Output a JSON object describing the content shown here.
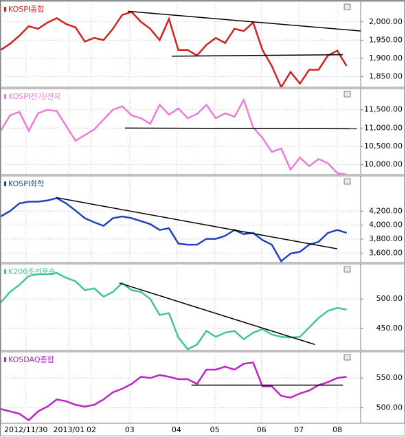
{
  "chart_data": [
    {
      "type": "line",
      "title": "KOSPI종합",
      "color": "#d42020",
      "values": [
        1923,
        1940,
        1962,
        1988,
        1981,
        1998,
        2010,
        1994,
        1985,
        1946,
        1956,
        1950,
        1981,
        2019,
        2027,
        2000,
        1981,
        1950,
        2008,
        1923,
        1923,
        1908,
        1937,
        1956,
        1942,
        1981,
        1975,
        1998,
        1923,
        1879,
        1821,
        1863,
        1831,
        1869,
        1869,
        1908,
        1921,
        1879
      ],
      "ylim": [
        1821,
        2056
      ],
      "yticks": [
        {
          "value": 2000,
          "label": "2,000.00"
        },
        {
          "value": 1950,
          "label": "1,950.00"
        },
        {
          "value": 1900,
          "label": "1,900.00"
        },
        {
          "value": 1850,
          "label": "1,850.00"
        }
      ],
      "trendlines": [
        {
          "x": [
            13.6,
            38.5
          ],
          "y": [
            2029,
            1975
          ]
        },
        {
          "x": [
            18.3,
            36.6
          ],
          "y": [
            1906,
            1910
          ]
        }
      ]
    },
    {
      "type": "line",
      "title": "KOSPI전기/전자",
      "color": "#f07ad8",
      "values": [
        10923,
        11346,
        11442,
        10923,
        11404,
        11500,
        11462,
        11058,
        10654,
        10808,
        10962,
        11231,
        11500,
        11596,
        11346,
        11269,
        11115,
        11635,
        11365,
        11538,
        11269,
        11385,
        11635,
        11269,
        11404,
        11308,
        11769,
        11019,
        10731,
        10346,
        10442,
        9865,
        10192,
        9962,
        10154,
        10038,
        9769,
        9731
      ],
      "ylim": [
        9731,
        12077
      ],
      "yticks": [
        {
          "value": 11500,
          "label": "11,500.00"
        },
        {
          "value": 11000,
          "label": "11,000.00"
        },
        {
          "value": 10500,
          "label": "10,500.00"
        },
        {
          "value": 10000,
          "label": "10,000.00"
        }
      ],
      "trendlines": [
        {
          "x": [
            13.3,
            38.1
          ],
          "y": [
            11000,
            10981
          ]
        }
      ]
    },
    {
      "type": "line",
      "title": "KOSPI화학",
      "color": "#2040c8",
      "values": [
        4124,
        4200,
        4310,
        4335,
        4335,
        4352,
        4386,
        4310,
        4208,
        4099,
        4040,
        3989,
        4099,
        4124,
        4099,
        4057,
        4014,
        3930,
        3955,
        3736,
        3719,
        3719,
        3803,
        3803,
        3846,
        3930,
        3871,
        3888,
        3786,
        3719,
        3483,
        3592,
        3618,
        3719,
        3761,
        3888,
        3930,
        3888
      ],
      "ylim": [
        3465,
        4704
      ],
      "yticks": [
        {
          "value": 4200,
          "label": "4,200.00"
        },
        {
          "value": 4000,
          "label": "4,000.00"
        },
        {
          "value": 3800,
          "label": "3,800.00"
        },
        {
          "value": 3600,
          "label": "3,600.00"
        }
      ],
      "trendlines": [
        {
          "x": [
            5.9,
            36
          ],
          "y": [
            4394,
            3660
          ]
        }
      ]
    },
    {
      "type": "line",
      "title": "K200조선운송",
      "color": "#40c890",
      "values": [
        494,
        512,
        524,
        539,
        542,
        542,
        544,
        536,
        530,
        515,
        518,
        504,
        512,
        527,
        515,
        512,
        500,
        473,
        476,
        435,
        415,
        423,
        446,
        436,
        443,
        446,
        432,
        443,
        449,
        440,
        436,
        435,
        436,
        452,
        468,
        480,
        485,
        482
      ],
      "ylim": [
        413,
        559.5
      ],
      "yticks": [
        {
          "value": 500,
          "label": "500.00"
        },
        {
          "value": 450,
          "label": "450.00"
        }
      ],
      "trendlines": [
        {
          "x": [
            12.7,
            33.6
          ],
          "y": [
            527,
            423
          ]
        }
      ]
    },
    {
      "type": "line",
      "title": "KOSDAQ종합",
      "color": "#c020c8",
      "values": [
        498,
        494,
        490,
        479,
        494,
        502,
        514,
        511,
        505,
        502,
        505,
        514,
        526,
        532,
        540,
        552,
        550,
        555,
        552,
        548,
        548,
        540,
        564,
        564,
        569,
        564,
        574,
        576,
        536,
        536,
        520,
        517,
        524,
        529,
        538,
        543,
        550,
        552
      ],
      "ylim": [
        474,
        594
      ],
      "yticks": [
        {
          "value": 550,
          "label": "550.00"
        },
        {
          "value": 500,
          "label": "500.00"
        }
      ],
      "trendlines": [
        {
          "x": [
            20.4,
            36.6
          ],
          "y": [
            538,
            538
          ]
        }
      ],
      "xlim": [
        0,
        38.5
      ],
      "xticks": [
        {
          "value": 2.7,
          "label": "2012/11/30"
        },
        {
          "value": 7.3,
          "label": "2013/01"
        },
        {
          "value": 9.7,
          "label": "02"
        },
        {
          "value": 13.8,
          "label": "03"
        },
        {
          "value": 18.8,
          "label": "04"
        },
        {
          "value": 22.9,
          "label": "05"
        },
        {
          "value": 27.9,
          "label": "06"
        },
        {
          "value": 31.9,
          "label": "07"
        },
        {
          "value": 36.0,
          "label": "08"
        }
      ]
    }
  ]
}
